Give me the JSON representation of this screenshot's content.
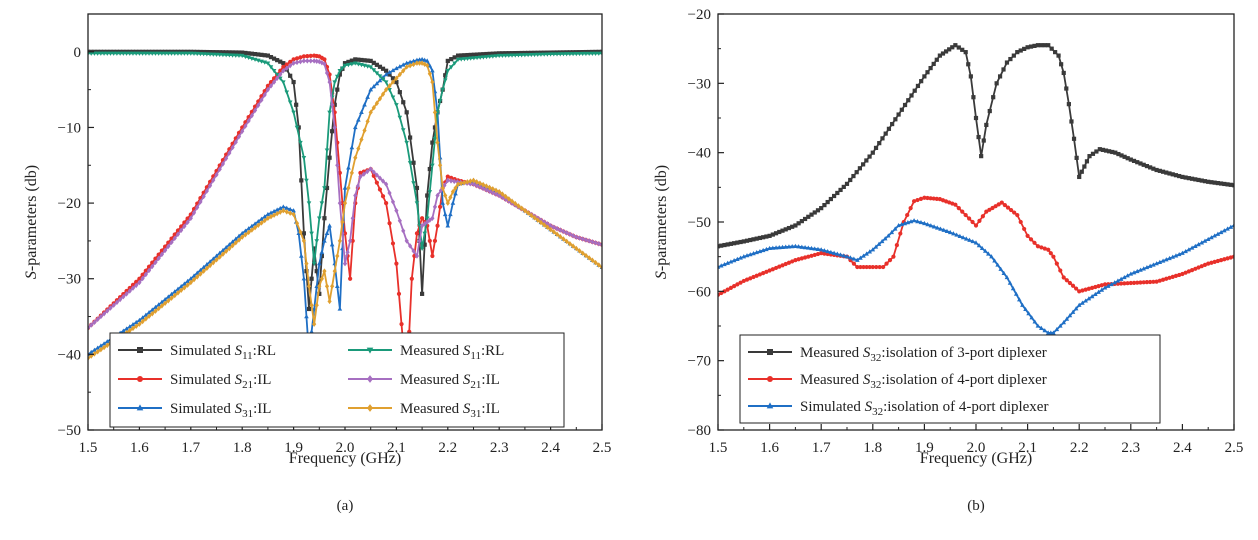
{
  "chart_data": [
    {
      "type": "line",
      "panel_label": "(a)",
      "xlabel": "Frequency (GHz)",
      "ylabel_italic": "S",
      "ylabel_rest": "-parameters (db)",
      "xlim": [
        1.5,
        2.5
      ],
      "ylim": [
        -50,
        5
      ],
      "xticks": [
        1.5,
        1.6,
        1.7,
        1.8,
        1.9,
        2.0,
        2.1,
        2.2,
        2.3,
        2.4,
        2.5
      ],
      "xtick_labels": [
        "1.5",
        "1.6",
        "1.7",
        "1.8",
        "1.9",
        "2.0",
        "2.1",
        "2.2",
        "2.3",
        "2.4",
        "2.5"
      ],
      "yticks": [
        0,
        -10,
        -20,
        -30,
        -40,
        -50
      ],
      "ytick_labels": [
        "0",
        "−10",
        "−20",
        "−30",
        "−40",
        "−50"
      ],
      "grid": false,
      "legend_position": "bottom-left",
      "legend_columns": 2,
      "series": [
        {
          "name": "Simulated S11:RL",
          "prefix": "Simulated ",
          "sub": "11",
          "suffix": ":RL",
          "color": "#3a3a3a",
          "marker": "square",
          "x": [
            1.5,
            1.6,
            1.7,
            1.8,
            1.85,
            1.88,
            1.9,
            1.91,
            1.92,
            1.93,
            1.94,
            1.95,
            1.96,
            1.97,
            1.98,
            1.99,
            2.0,
            2.02,
            2.05,
            2.08,
            2.1,
            2.12,
            2.14,
            2.15,
            2.16,
            2.17,
            2.18,
            2.19,
            2.2,
            2.22,
            2.3,
            2.4,
            2.5
          ],
          "y": [
            0,
            0,
            0,
            -0.1,
            -0.5,
            -1.5,
            -4,
            -10,
            -24,
            -34,
            -26,
            -32,
            -22,
            -14,
            -7,
            -3,
            -1.5,
            -1,
            -1.2,
            -2.5,
            -4,
            -8,
            -18,
            -32,
            -19,
            -12,
            -8,
            -5,
            -1.2,
            -0.5,
            -0.2,
            -0.1,
            0
          ]
        },
        {
          "name": "Simulated S21:IL",
          "prefix": "Simulated ",
          "sub": "21",
          "suffix": ":IL",
          "color": "#e8302a",
          "marker": "circle",
          "x": [
            1.5,
            1.6,
            1.7,
            1.8,
            1.85,
            1.88,
            1.9,
            1.92,
            1.94,
            1.95,
            1.96,
            1.97,
            1.98,
            1.99,
            2.0,
            2.01,
            2.02,
            2.03,
            2.05,
            2.08,
            2.1,
            2.11,
            2.12,
            2.13,
            2.14,
            2.15,
            2.16,
            2.17,
            2.18,
            2.19,
            2.2,
            2.22,
            2.25,
            2.3,
            2.35,
            2.4,
            2.45,
            2.5
          ],
          "y": [
            -36.5,
            -30,
            -21.5,
            -10,
            -4.5,
            -2,
            -1,
            -0.6,
            -0.5,
            -0.6,
            -1,
            -3,
            -8,
            -16,
            -24,
            -30,
            -20,
            -16,
            -15.5,
            -20,
            -28,
            -36,
            -44,
            -30,
            -24,
            -22,
            -23,
            -27,
            -23,
            -18,
            -16.5,
            -17,
            -17.5,
            -19,
            -21,
            -23,
            -24.5,
            -25.5
          ]
        },
        {
          "name": "Simulated S31:IL",
          "prefix": "Simulated ",
          "sub": "31",
          "suffix": ":IL",
          "color": "#1f6fc5",
          "marker": "triangle",
          "x": [
            1.5,
            1.6,
            1.7,
            1.8,
            1.85,
            1.88,
            1.9,
            1.91,
            1.92,
            1.93,
            1.94,
            1.95,
            1.96,
            1.97,
            1.98,
            1.99,
            2.0,
            2.02,
            2.05,
            2.08,
            2.1,
            2.12,
            2.14,
            2.15,
            2.16,
            2.17,
            2.18,
            2.19,
            2.2,
            2.21,
            2.22,
            2.25,
            2.3,
            2.4,
            2.5
          ],
          "y": [
            -40,
            -35.5,
            -30,
            -24,
            -21.5,
            -20.5,
            -21,
            -24,
            -30,
            -40,
            -34,
            -28,
            -25,
            -23,
            -28,
            -34,
            -18,
            -10,
            -5,
            -3,
            -2.2,
            -1.5,
            -1.1,
            -1,
            -1.2,
            -2.5,
            -8,
            -20,
            -23,
            -20,
            -17.5,
            -17,
            -18.5,
            -23.5,
            -28.5
          ]
        },
        {
          "name": "Measured S11:RL",
          "prefix": "Measured ",
          "sub": "11",
          "suffix": ":RL",
          "color": "#1a9a7a",
          "marker": "triangle-down",
          "x": [
            1.5,
            1.6,
            1.7,
            1.8,
            1.85,
            1.88,
            1.9,
            1.92,
            1.93,
            1.94,
            1.95,
            1.96,
            1.97,
            1.98,
            1.99,
            2.0,
            2.02,
            2.05,
            2.08,
            2.1,
            2.12,
            2.14,
            2.15,
            2.16,
            2.17,
            2.18,
            2.19,
            2.2,
            2.22,
            2.3,
            2.4,
            2.5
          ],
          "y": [
            -0.2,
            -0.2,
            -0.2,
            -0.5,
            -1.5,
            -4,
            -8,
            -14,
            -20,
            -28,
            -22,
            -18,
            -8,
            -4,
            -2.5,
            -1.8,
            -1.5,
            -2,
            -4,
            -7,
            -12,
            -20,
            -26,
            -22,
            -15,
            -8,
            -5,
            -2.5,
            -1,
            -0.5,
            -0.3,
            -0.2
          ]
        },
        {
          "name": "Measured S21:IL",
          "prefix": "Measured ",
          "sub": "21",
          "suffix": ":IL",
          "color": "#a66fc1",
          "marker": "diamond",
          "x": [
            1.5,
            1.6,
            1.7,
            1.8,
            1.85,
            1.88,
            1.9,
            1.92,
            1.94,
            1.95,
            1.96,
            1.97,
            1.98,
            1.99,
            2.0,
            2.01,
            2.02,
            2.03,
            2.05,
            2.08,
            2.1,
            2.12,
            2.14,
            2.15,
            2.16,
            2.17,
            2.18,
            2.2,
            2.25,
            2.3,
            2.35,
            2.4,
            2.45,
            2.5
          ],
          "y": [
            -36.5,
            -30.5,
            -22,
            -10.5,
            -5,
            -2.5,
            -1.5,
            -1.2,
            -1.2,
            -1.3,
            -1.6,
            -4,
            -10,
            -20,
            -28,
            -25,
            -19,
            -16.5,
            -15.5,
            -17.5,
            -21,
            -25,
            -27,
            -23,
            -22.5,
            -22,
            -19,
            -17,
            -17.5,
            -19,
            -21,
            -23,
            -24.5,
            -25.5
          ]
        },
        {
          "name": "Measured S31:IL",
          "prefix": "Measured ",
          "sub": "31",
          "suffix": ":IL",
          "color": "#e0a030",
          "marker": "diamond",
          "x": [
            1.5,
            1.6,
            1.7,
            1.8,
            1.85,
            1.88,
            1.9,
            1.92,
            1.93,
            1.94,
            1.95,
            1.96,
            1.97,
            1.98,
            1.99,
            2.0,
            2.02,
            2.05,
            2.08,
            2.1,
            2.12,
            2.14,
            2.15,
            2.16,
            2.17,
            2.18,
            2.19,
            2.2,
            2.21,
            2.22,
            2.25,
            2.3,
            2.4,
            2.5
          ],
          "y": [
            -40.5,
            -36,
            -30.5,
            -24.5,
            -22,
            -21,
            -21.5,
            -25,
            -31,
            -36,
            -31,
            -29,
            -33,
            -29,
            -25,
            -20,
            -14,
            -8,
            -5,
            -3.5,
            -2,
            -1.5,
            -1.5,
            -1.8,
            -4,
            -12,
            -18,
            -20,
            -18.5,
            -17.5,
            -17,
            -18.5,
            -23.5,
            -28.5
          ]
        }
      ]
    },
    {
      "type": "line",
      "panel_label": "(b)",
      "xlabel": "Frequency (GHz)",
      "ylabel_italic": "S",
      "ylabel_rest": "-parameters (db)",
      "xlim": [
        1.5,
        2.5
      ],
      "ylim": [
        -80,
        -20
      ],
      "xticks": [
        1.5,
        1.6,
        1.7,
        1.8,
        1.9,
        2.0,
        2.1,
        2.2,
        2.3,
        2.4,
        2.5
      ],
      "xtick_labels": [
        "1.5",
        "1.6",
        "1.7",
        "1.8",
        "1.9",
        "2.0",
        "2.1",
        "2.2",
        "2.3",
        "2.4",
        "2.5"
      ],
      "yticks": [
        -20,
        -30,
        -40,
        -50,
        -60,
        -70,
        -80
      ],
      "ytick_labels": [
        "−20",
        "−30",
        "−40",
        "−50",
        "−60",
        "−70",
        "−80"
      ],
      "grid": false,
      "legend_position": "bottom-left",
      "legend_columns": 1,
      "series": [
        {
          "name": "Measured S32:isolation of 3-port diplexer",
          "prefix": "Measured ",
          "sub": "32",
          "suffix": ":isolation of 3-port diplexer",
          "color": "#3a3a3a",
          "marker": "square",
          "x": [
            1.5,
            1.55,
            1.6,
            1.65,
            1.7,
            1.75,
            1.8,
            1.85,
            1.9,
            1.93,
            1.96,
            1.98,
            1.99,
            2.0,
            2.01,
            2.02,
            2.04,
            2.06,
            2.08,
            2.1,
            2.12,
            2.14,
            2.16,
            2.17,
            2.18,
            2.19,
            2.2,
            2.21,
            2.22,
            2.24,
            2.27,
            2.3,
            2.35,
            2.4,
            2.45,
            2.5
          ],
          "y": [
            -53.5,
            -52.8,
            -52,
            -50.5,
            -48,
            -44.5,
            -40,
            -34.5,
            -29,
            -26,
            -24.5,
            -25.5,
            -29,
            -35,
            -40.5,
            -36,
            -30,
            -27,
            -25.5,
            -24.8,
            -24.5,
            -24.5,
            -26,
            -28.5,
            -33,
            -38,
            -43.5,
            -42,
            -40.5,
            -39.5,
            -40,
            -41,
            -42.5,
            -43.5,
            -44.2,
            -44.7
          ]
        },
        {
          "name": "Measured S32:isolation of 4-port diplexer",
          "prefix": "Measured ",
          "sub": "32",
          "suffix": ":isolation of 4-port diplexer",
          "color": "#e8302a",
          "marker": "circle",
          "x": [
            1.5,
            1.55,
            1.6,
            1.65,
            1.7,
            1.75,
            1.77,
            1.8,
            1.82,
            1.84,
            1.86,
            1.88,
            1.9,
            1.93,
            1.96,
            1.98,
            2.0,
            2.02,
            2.05,
            2.08,
            2.1,
            2.12,
            2.14,
            2.15,
            2.17,
            2.2,
            2.25,
            2.3,
            2.35,
            2.4,
            2.45,
            2.5
          ],
          "y": [
            -60.5,
            -58.5,
            -57,
            -55.5,
            -54.5,
            -55,
            -56.5,
            -56.5,
            -56.5,
            -55,
            -50,
            -47,
            -46.5,
            -46.7,
            -47.5,
            -49,
            -50.5,
            -48.5,
            -47.2,
            -49,
            -52,
            -53.5,
            -54,
            -55,
            -58,
            -60,
            -59,
            -58.8,
            -58.6,
            -57.5,
            -56,
            -55
          ]
        },
        {
          "name": "Simulated S32:isolation of 4-port diplexer",
          "prefix": "Simulated ",
          "sub": "32",
          "suffix": ":isolation of 4-port diplexer",
          "color": "#1f6fc5",
          "marker": "triangle",
          "x": [
            1.5,
            1.55,
            1.6,
            1.65,
            1.7,
            1.75,
            1.77,
            1.8,
            1.83,
            1.85,
            1.88,
            1.9,
            1.95,
            2.0,
            2.03,
            2.06,
            2.09,
            2.12,
            2.14,
            2.15,
            2.17,
            2.2,
            2.25,
            2.3,
            2.35,
            2.4,
            2.45,
            2.5
          ],
          "y": [
            -56.5,
            -55,
            -53.8,
            -53.5,
            -54,
            -55,
            -55.5,
            -54,
            -52,
            -50.5,
            -49.8,
            -50.2,
            -51.5,
            -53,
            -55,
            -58,
            -62,
            -65,
            -66,
            -66,
            -64.5,
            -62,
            -59.5,
            -57.5,
            -56,
            -54.5,
            -52.5,
            -50.5
          ]
        }
      ]
    }
  ]
}
